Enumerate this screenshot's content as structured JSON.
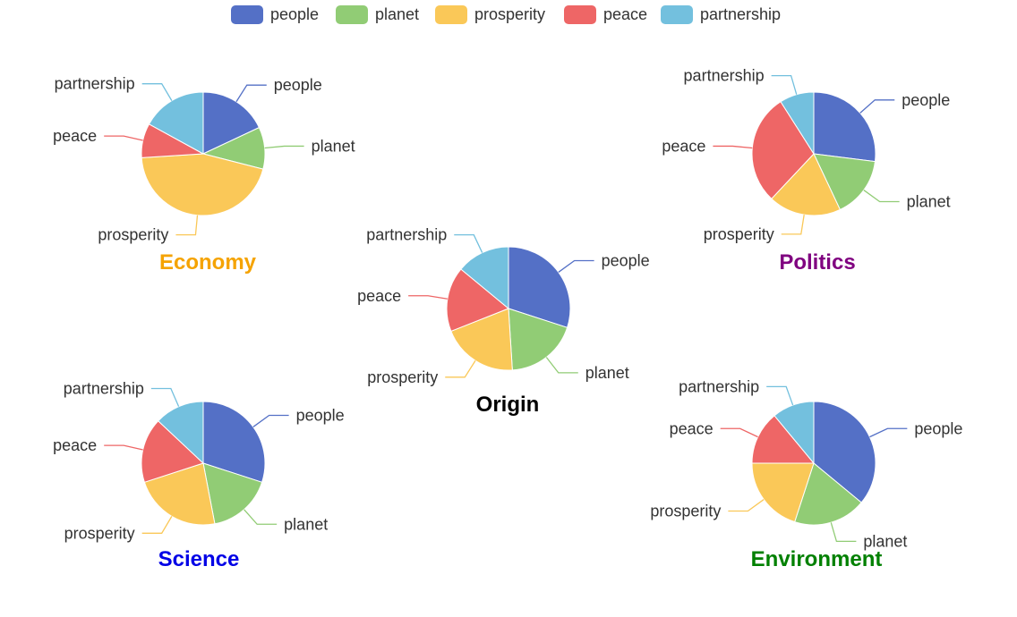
{
  "chart_data": {
    "type": "pie",
    "legend_position": "top-center",
    "legend": [
      "people",
      "planet",
      "prosperity",
      "peace",
      "partnership"
    ],
    "colors": [
      "#5470c6",
      "#91cc75",
      "#fac858",
      "#ee6666",
      "#73c0de"
    ],
    "charts": [
      {
        "title": "Economy",
        "title_color": "#f5a300",
        "values": {
          "people": 18,
          "planet": 11,
          "prosperity": 45,
          "peace": 9,
          "partnership": 17
        }
      },
      {
        "title": "Politics",
        "title_color": "#800080",
        "values": {
          "people": 27,
          "planet": 16,
          "prosperity": 19,
          "peace": 29,
          "partnership": 9
        }
      },
      {
        "title": "Origin",
        "title_color": "#000000",
        "values": {
          "people": 30,
          "planet": 19,
          "prosperity": 20,
          "peace": 17,
          "partnership": 14
        }
      },
      {
        "title": "Science",
        "title_color": "#0000e6",
        "values": {
          "people": 30,
          "planet": 17,
          "prosperity": 23,
          "peace": 17,
          "partnership": 13
        }
      },
      {
        "title": "Environment",
        "title_color": "#008000",
        "values": {
          "people": 36,
          "planet": 19,
          "prosperity": 20,
          "peace": 14,
          "partnership": 11
        }
      }
    ]
  }
}
